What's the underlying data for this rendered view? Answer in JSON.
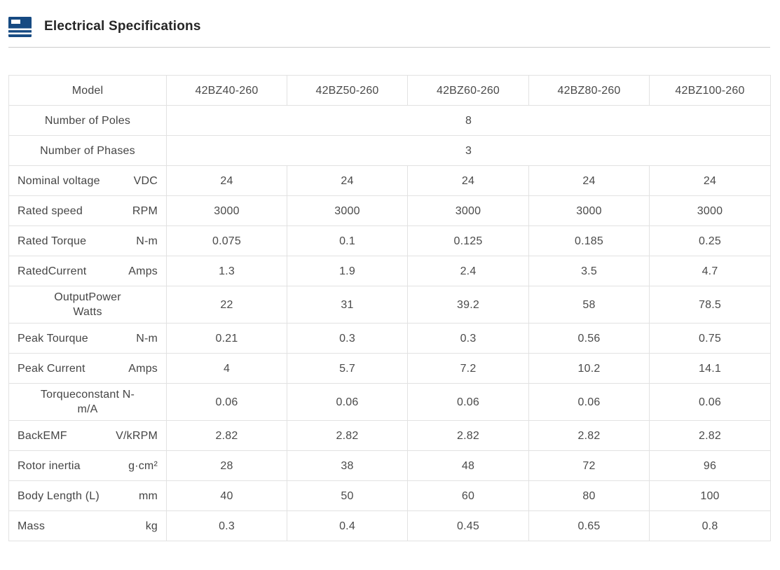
{
  "header": {
    "title": "Electrical Specifications",
    "icon": "spec-list-icon"
  },
  "colors": {
    "accent_blue": "#164a82",
    "table_border": "#e2e2e2",
    "divider": "#cbcbcb",
    "text": "#4a4a4a",
    "title_text": "#262626"
  },
  "table": {
    "corner_label": "Model",
    "models": [
      "42BZ40-260",
      "42BZ50-260",
      "42BZ60-260",
      "42BZ80-260",
      "42BZ100-260"
    ],
    "rows": [
      {
        "label": "Number of Poles",
        "unit": "",
        "layout": "center",
        "span_value": "8"
      },
      {
        "label": "Number of Phases",
        "unit": "",
        "layout": "center",
        "span_value": "3"
      },
      {
        "label": "Nominal voltage",
        "unit": "VDC",
        "layout": "split",
        "values": [
          "24",
          "24",
          "24",
          "24",
          "24"
        ]
      },
      {
        "label": "Rated speed",
        "unit": "RPM",
        "layout": "split",
        "values": [
          "3000",
          "3000",
          "3000",
          "3000",
          "3000"
        ]
      },
      {
        "label": "Rated Torque",
        "unit": "N-m",
        "layout": "split",
        "values": [
          "0.075",
          "0.1",
          "0.125",
          "0.185",
          "0.25"
        ]
      },
      {
        "label": "RatedCurrent",
        "unit": "Amps",
        "layout": "split",
        "values": [
          "1.3",
          "1.9",
          "2.4",
          "3.5",
          "4.7"
        ]
      },
      {
        "label": "OutputPower",
        "unit": "Watts",
        "layout": "stack",
        "label_lines": [
          "OutputPower",
          "Watts"
        ],
        "values": [
          "22",
          "31",
          "39.2",
          "58",
          "78.5"
        ]
      },
      {
        "label": "Peak Tourque",
        "unit": "N-m",
        "layout": "split",
        "values": [
          "0.21",
          "0.3",
          "0.3",
          "0.56",
          "0.75"
        ]
      },
      {
        "label": "Peak Current",
        "unit": "Amps",
        "layout": "split",
        "values": [
          "4",
          "5.7",
          "7.2",
          "10.2",
          "14.1"
        ]
      },
      {
        "label": "Torqueconstant",
        "unit": "N-m/A",
        "layout": "stack",
        "label_lines": [
          "Torqueconstant N-",
          "m/A"
        ],
        "values": [
          "0.06",
          "0.06",
          "0.06",
          "0.06",
          "0.06"
        ]
      },
      {
        "label": "BackEMF",
        "unit": "V/kRPM",
        "layout": "split",
        "values": [
          "2.82",
          "2.82",
          "2.82",
          "2.82",
          "2.82"
        ]
      },
      {
        "label": "Rotor inertia",
        "unit": "g·cm²",
        "layout": "split",
        "values": [
          "28",
          "38",
          "48",
          "72",
          "96"
        ]
      },
      {
        "label": "Body Length (L)",
        "unit": "mm",
        "layout": "split",
        "values": [
          "40",
          "50",
          "60",
          "80",
          "100"
        ]
      },
      {
        "label": "Mass",
        "unit": "kg",
        "layout": "split",
        "values": [
          "0.3",
          "0.4",
          "0.45",
          "0.65",
          "0.8"
        ]
      }
    ]
  }
}
